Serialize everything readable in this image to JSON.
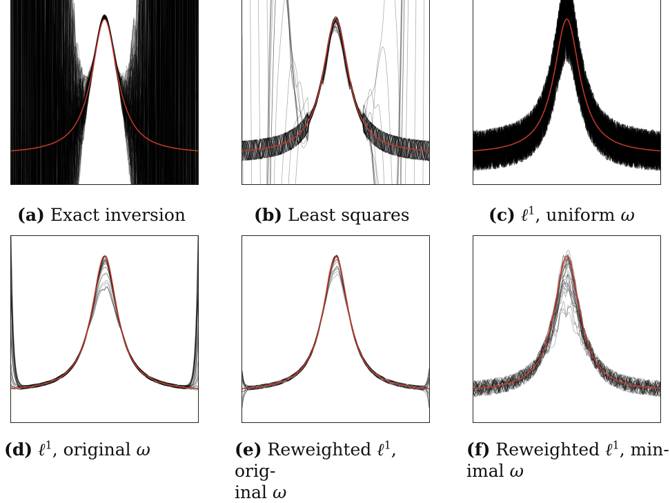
{
  "chart_data": [
    {
      "type": "line",
      "panel": "a",
      "label": "(a)",
      "title": "Exact inversion",
      "reference_curve_color": "#c0392b",
      "trace_color": "#000000",
      "x_range": [
        -1,
        1
      ],
      "y_range": [
        0,
        1.12
      ],
      "reference_curve": {
        "peak": 1.0,
        "baseline": 0.18
      },
      "behavior": "traces match the peak near the centre but oscillate wildly toward both ends"
    },
    {
      "type": "line",
      "panel": "b",
      "label": "(b)",
      "title": "Least squares",
      "reference_curve_color": "#c0392b",
      "trace_color": "#000000",
      "x_range": [
        -1,
        1
      ],
      "y_range": [
        0,
        1.12
      ],
      "reference_curve": {
        "peak": 1.0,
        "baseline": 0.18
      },
      "behavior": "traces follow the peak; some traces diverge near both edges"
    },
    {
      "type": "line",
      "panel": "c",
      "label": "(c)",
      "title_prefix": "uniform",
      "title_symbol": "ω",
      "reference_curve_color": "#c0392b",
      "trace_color": "#000000",
      "x_range": [
        -1,
        1
      ],
      "y_range": [
        0,
        1.12
      ],
      "reference_curve": {
        "peak": 1.0,
        "baseline": 0.18
      },
      "behavior": "dense high-frequency noise around the whole curve"
    },
    {
      "type": "line",
      "panel": "d",
      "label": "(d)",
      "title_prefix": "original",
      "title_symbol": "ω",
      "reference_curve_color": "#c0392b",
      "trace_color": "#000000",
      "x_range": [
        -1,
        1
      ],
      "y_range": [
        0,
        1.12
      ],
      "reference_curve": {
        "peak": 1.0,
        "baseline": 0.18
      },
      "behavior": "smooth traces, some peak underestimates, spikes at the extreme edges"
    },
    {
      "type": "line",
      "panel": "e",
      "label": "(e)",
      "title_pre": "Reweighted",
      "title_mid": "orig-",
      "title_end": "inal",
      "title_symbol": "ω",
      "reference_curve_color": "#c0392b",
      "trace_color": "#000000",
      "x_range": [
        -1,
        1
      ],
      "y_range": [
        0,
        1.12
      ],
      "reference_curve": {
        "peak": 1.0,
        "baseline": 0.18
      },
      "behavior": "smooth traces close to the curve, slight deviations at the edges"
    },
    {
      "type": "line",
      "panel": "f",
      "label": "(f)",
      "title_pre": "Reweighted",
      "title_mid": "min-",
      "title_end": "imal",
      "title_symbol": "ω",
      "reference_curve_color": "#c0392b",
      "trace_color": "#000000",
      "x_range": [
        -1,
        1
      ],
      "y_range": [
        0,
        1.12
      ],
      "reference_curve": {
        "peak": 1.0,
        "baseline": 0.18
      },
      "behavior": "moderately noisy traces, several underestimate the peak"
    }
  ],
  "captions": {
    "a": {
      "label": "(a)",
      "text": "Exact inversion"
    },
    "b": {
      "label": "(b)",
      "text": "Least squares"
    },
    "c": {
      "label": "(c)",
      "ell": "ℓ",
      "sup": "1",
      "text": ", uniform ",
      "omega": "ω"
    },
    "d": {
      "label": "(d)",
      "ell": "ℓ",
      "sup": "1",
      "text": ", original ",
      "omega": "ω"
    },
    "e": {
      "label": "(e)",
      "pre": "Reweighted ",
      "ell": "ℓ",
      "sup": "1",
      "text": ", orig-",
      "line2": "inal ",
      "omega": "ω"
    },
    "f": {
      "label": "(f)",
      "pre": "Reweighted ",
      "ell": "ℓ",
      "sup": "1",
      "text": ", min-",
      "line2": "imal ",
      "omega": "ω"
    }
  }
}
